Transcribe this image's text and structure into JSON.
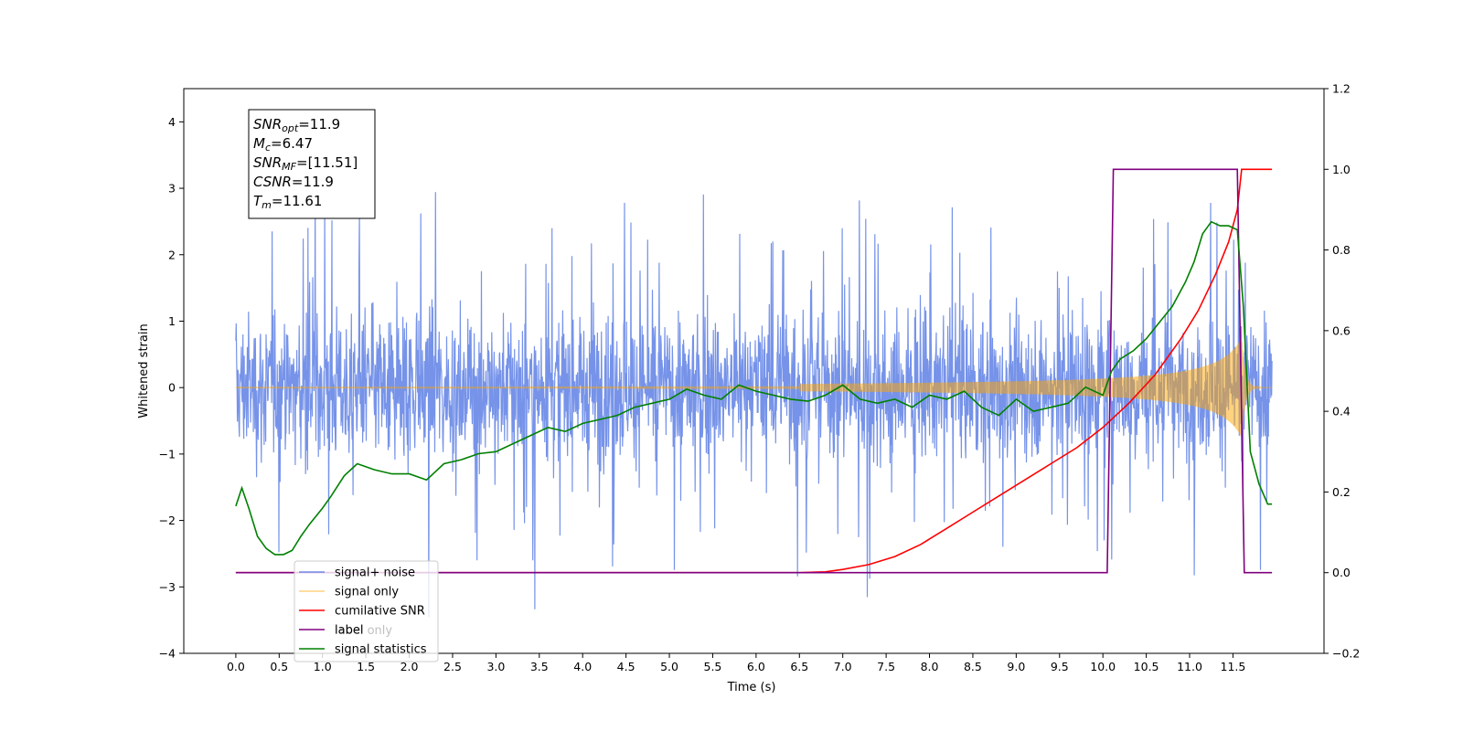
{
  "chart_data": {
    "type": "line",
    "title": "",
    "xlabel": "Time (s)",
    "ylabel": "Whitened strain",
    "xlim": [
      -0.6,
      12.55
    ],
    "ylim": [
      -4.0,
      4.5
    ],
    "y2lim": [
      -0.2,
      1.2
    ],
    "x_ticks": [
      "0.0",
      "0.5",
      "1.0",
      "1.5",
      "2.0",
      "2.5",
      "3.0",
      "3.5",
      "4.0",
      "4.5",
      "5.0",
      "5.5",
      "6.0",
      "6.5",
      "7.0",
      "7.5",
      "8.0",
      "8.5",
      "9.0",
      "9.5",
      "10.0",
      "10.5",
      "11.0",
      "11.5"
    ],
    "y_ticks": [
      "−4",
      "−3",
      "−2",
      "−1",
      "0",
      "1",
      "2",
      "3",
      "4"
    ],
    "y2_ticks": [
      "−0.2",
      "0.0",
      "0.2",
      "0.4",
      "0.6",
      "0.8",
      "1.0",
      "1.2"
    ],
    "grid": false,
    "legend_position": "lower-left",
    "annotation": {
      "lines": [
        {
          "base": "SNR",
          "sub": "opt",
          "value": "=11.9"
        },
        {
          "base": "M",
          "sub": "c",
          "value": "=6.47"
        },
        {
          "base": "SNR",
          "sub": "MF",
          "value": "=[11.51]"
        },
        {
          "base": "CSNR",
          "sub": "",
          "value": "=11.9"
        },
        {
          "base": "T",
          "sub": "m",
          "value": "=11.61"
        }
      ]
    },
    "series": [
      {
        "name": "signal+ noise",
        "color": "#4169e1",
        "axis": "left",
        "kind": "noise",
        "envelope_lo": -1.3,
        "envelope_hi": 1.3,
        "spike_max": 4.1,
        "spike_min": -3.6,
        "x_range": [
          0.0,
          11.95
        ]
      },
      {
        "name": "signal only",
        "color": "#ffa500",
        "axis": "left",
        "kind": "chirp",
        "x_range": [
          0.0,
          11.95
        ],
        "peak_amplitude": 0.75,
        "peak_time": 11.6
      },
      {
        "name": "cumilative SNR",
        "color": "#ff0000",
        "axis": "right",
        "x": [
          0.0,
          6.5,
          6.8,
          7.0,
          7.3,
          7.6,
          7.9,
          8.2,
          8.5,
          8.8,
          9.1,
          9.4,
          9.7,
          10.0,
          10.3,
          10.6,
          10.9,
          11.1,
          11.3,
          11.45,
          11.55,
          11.6,
          11.95
        ],
        "y": [
          0.0,
          0.0,
          0.002,
          0.008,
          0.02,
          0.04,
          0.07,
          0.11,
          0.15,
          0.19,
          0.23,
          0.27,
          0.31,
          0.36,
          0.42,
          0.49,
          0.58,
          0.65,
          0.74,
          0.82,
          0.9,
          1.0,
          1.0
        ]
      },
      {
        "name": "label",
        "color": "#800080",
        "axis": "right",
        "x": [
          0.0,
          10.05,
          10.12,
          11.55,
          11.63,
          11.95
        ],
        "y": [
          0.0,
          0.0,
          1.0,
          1.0,
          0.0,
          0.0
        ]
      },
      {
        "name": "label only",
        "color": "#800080",
        "axis": "right",
        "hidden_in_legend_overlap": true
      },
      {
        "name": "signal statistics",
        "color": "#008000",
        "axis": "right",
        "x": [
          0.0,
          0.07,
          0.15,
          0.25,
          0.35,
          0.45,
          0.55,
          0.65,
          0.75,
          0.85,
          1.0,
          1.1,
          1.25,
          1.4,
          1.6,
          1.8,
          2.0,
          2.2,
          2.4,
          2.6,
          2.8,
          3.0,
          3.2,
          3.4,
          3.6,
          3.8,
          4.0,
          4.2,
          4.4,
          4.6,
          4.8,
          5.0,
          5.2,
          5.4,
          5.6,
          5.8,
          6.0,
          6.2,
          6.4,
          6.6,
          6.8,
          7.0,
          7.2,
          7.4,
          7.6,
          7.8,
          8.0,
          8.2,
          8.4,
          8.6,
          8.8,
          9.0,
          9.2,
          9.4,
          9.6,
          9.8,
          10.0,
          10.1,
          10.2,
          10.35,
          10.5,
          10.65,
          10.8,
          10.95,
          11.05,
          11.15,
          11.25,
          11.35,
          11.45,
          11.55,
          11.62,
          11.7,
          11.8,
          11.9,
          11.95
        ],
        "y": [
          0.165,
          0.21,
          0.16,
          0.09,
          0.06,
          0.045,
          0.045,
          0.055,
          0.09,
          0.12,
          0.16,
          0.19,
          0.24,
          0.27,
          0.255,
          0.245,
          0.245,
          0.23,
          0.27,
          0.28,
          0.295,
          0.3,
          0.32,
          0.34,
          0.36,
          0.35,
          0.37,
          0.38,
          0.39,
          0.41,
          0.42,
          0.43,
          0.455,
          0.44,
          0.43,
          0.465,
          0.45,
          0.44,
          0.43,
          0.425,
          0.44,
          0.465,
          0.43,
          0.42,
          0.43,
          0.41,
          0.44,
          0.43,
          0.45,
          0.41,
          0.39,
          0.43,
          0.4,
          0.41,
          0.42,
          0.46,
          0.44,
          0.5,
          0.53,
          0.55,
          0.58,
          0.62,
          0.66,
          0.72,
          0.77,
          0.84,
          0.87,
          0.86,
          0.86,
          0.85,
          0.66,
          0.3,
          0.22,
          0.17,
          0.17
        ]
      }
    ]
  }
}
